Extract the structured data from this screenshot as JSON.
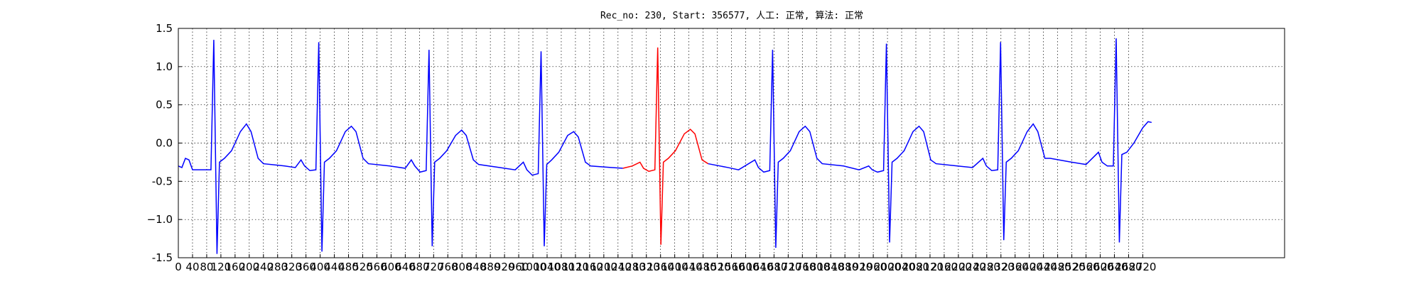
{
  "chart_data": {
    "type": "line",
    "title": "Rec_no: 230, Start: 356577, 人工: 正常, 算法: 正常",
    "grid": true,
    "xlim": [
      0,
      3120
    ],
    "ylim": [
      -1.5,
      1.5
    ],
    "xticks": [
      0,
      40,
      80,
      120,
      160,
      200,
      240,
      280,
      320,
      360,
      400,
      440,
      480,
      520,
      560,
      600,
      640,
      680,
      720,
      760,
      800,
      840,
      880,
      920,
      960,
      1000,
      1040,
      1080,
      1120,
      1160,
      1200,
      1240,
      1280,
      1320,
      1360,
      1400,
      1440,
      1480,
      1520,
      1560,
      1600,
      1640,
      1680,
      1720,
      1760,
      1800,
      1840,
      1880,
      1920,
      1960,
      2000,
      2040,
      2080,
      2120,
      2160,
      2200,
      2240,
      2280,
      2320,
      2360,
      2400,
      2440,
      2480,
      2520,
      2560,
      2600,
      2640,
      2680,
      2720
    ],
    "yticks": [
      -1.5,
      {
        "value": -1.0,
        "label": "−1.0"
      },
      -0.5,
      {
        "value": 0,
        "label": "0.0"
      },
      0.5,
      {
        "value": 1.0,
        "label": "1.0"
      },
      1.5
    ],
    "series": [
      {
        "color": "#0000ff",
        "x": [
          0,
          10,
          20,
          30,
          40,
          92,
          100,
          109,
          116,
          130,
          150,
          175,
          192,
          205,
          225,
          240,
          300,
          330,
          346,
          356,
          371,
          388,
          396,
          405,
          412,
          426,
          446,
          471,
          488,
          501,
          521,
          536,
          596,
          640,
          657,
          667,
          682,
          699,
          707,
          716,
          723,
          737,
          757,
          782,
          799,
          812,
          832,
          847,
          907,
          950,
          973,
          983,
          998,
          1015,
          1023,
          1032,
          1039,
          1053,
          1073,
          1098,
          1115,
          1128,
          1148,
          1163,
          1223,
          1254,
          1374,
          1494,
          1550,
          1580,
          1626,
          1636,
          1651,
          1668,
          1676,
          1685,
          1692,
          1706,
          1726,
          1751,
          1768,
          1781,
          1801,
          1816,
          1876,
          1920,
          1947,
          1957,
          1972,
          1989,
          1997,
          2006,
          2013,
          2027,
          2047,
          2072,
          2089,
          2102,
          2122,
          2137,
          2197,
          2240,
          2269,
          2279,
          2294,
          2311,
          2319,
          2328,
          2335,
          2349,
          2369,
          2394,
          2411,
          2424,
          2444,
          2459,
          2519,
          2560,
          2595,
          2605,
          2620,
          2637,
          2645,
          2654,
          2661,
          2675,
          2695,
          2720,
          2735,
          2745
        ],
        "values": [
          -0.3,
          -0.32,
          -0.2,
          -0.22,
          -0.35,
          -0.35,
          1.35,
          -1.45,
          -0.25,
          -0.2,
          -0.1,
          0.15,
          0.25,
          0.15,
          -0.2,
          -0.27,
          -0.3,
          -0.32,
          -0.22,
          -0.3,
          -0.36,
          -0.35,
          1.32,
          -1.42,
          -0.25,
          -0.2,
          -0.1,
          0.15,
          0.22,
          0.15,
          -0.2,
          -0.27,
          -0.3,
          -0.33,
          -0.22,
          -0.3,
          -0.38,
          -0.36,
          1.22,
          -1.35,
          -0.25,
          -0.2,
          -0.1,
          0.1,
          0.17,
          0.1,
          -0.22,
          -0.28,
          -0.32,
          -0.35,
          -0.25,
          -0.35,
          -0.42,
          -0.4,
          1.2,
          -1.35,
          -0.28,
          -0.22,
          -0.12,
          0.1,
          0.15,
          0.08,
          -0.25,
          -0.3,
          -0.32,
          -0.33,
          null,
          -0.27,
          -0.32,
          -0.35,
          -0.22,
          -0.32,
          -0.38,
          -0.36,
          1.22,
          -1.37,
          -0.25,
          -0.2,
          -0.1,
          0.15,
          0.22,
          0.15,
          -0.2,
          -0.27,
          -0.3,
          -0.35,
          -0.3,
          -0.35,
          -0.38,
          -0.36,
          1.3,
          -1.3,
          -0.25,
          -0.2,
          -0.1,
          0.15,
          0.22,
          0.15,
          -0.22,
          -0.27,
          -0.3,
          -0.32,
          -0.2,
          -0.3,
          -0.36,
          -0.35,
          1.32,
          -1.27,
          -0.25,
          -0.2,
          -0.1,
          0.15,
          0.25,
          0.15,
          -0.2,
          -0.2,
          -0.25,
          -0.28,
          -0.12,
          -0.25,
          -0.3,
          -0.3,
          1.37,
          -1.3,
          -0.15,
          -0.12,
          0.0,
          0.2,
          0.28,
          0.27
        ]
      },
      {
        "color": "#ff0000",
        "x": [
          1254,
          1280,
          1302,
          1312,
          1327,
          1344,
          1352,
          1361,
          1368,
          1382,
          1402,
          1427,
          1444,
          1457,
          1477,
          1494
        ],
        "values": [
          -0.33,
          -0.3,
          -0.25,
          -0.33,
          -0.37,
          -0.35,
          1.25,
          -1.33,
          -0.25,
          -0.2,
          -0.1,
          0.12,
          0.18,
          0.12,
          -0.22,
          -0.27
        ]
      }
    ]
  }
}
